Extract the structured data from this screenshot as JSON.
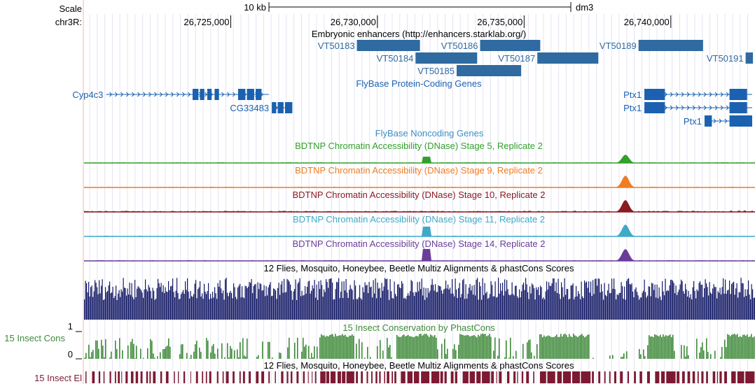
{
  "scale": {
    "label": "Scale",
    "bar_label": "10 kb",
    "assembly": "dm3"
  },
  "chrom": {
    "label": "chr3R:",
    "ticks": [
      {
        "pos": 26725000,
        "label": "26,725,000"
      },
      {
        "pos": 26730000,
        "label": "26,730,000"
      },
      {
        "pos": 26735000,
        "label": "26,735,000"
      },
      {
        "pos": 26740000,
        "label": "26,740,000"
      }
    ]
  },
  "tracks": {
    "enhancers": {
      "title": "Embryonic enhancers (http://enhancers.starklab.org/)",
      "color": "#2f6aa1",
      "items": [
        {
          "name": "VT50183",
          "start": 26729300,
          "end": 26731450,
          "row": 0
        },
        {
          "name": "VT50186",
          "start": 26733500,
          "end": 26735550,
          "row": 0
        },
        {
          "name": "VT50189",
          "start": 26738900,
          "end": 26741100,
          "row": 0
        },
        {
          "name": "VT50184",
          "start": 26731300,
          "end": 26733400,
          "row": 1
        },
        {
          "name": "VT50187",
          "start": 26735450,
          "end": 26737530,
          "row": 1
        },
        {
          "name": "VT50191",
          "start": 26742550,
          "end": 26742800,
          "row": 1
        },
        {
          "name": "VT50185",
          "start": 26732700,
          "end": 26734900,
          "row": 2
        }
      ]
    },
    "coding_genes": {
      "title": "FlyBase Protein-Coding Genes",
      "color": "#1b61b0",
      "genes": [
        {
          "name": "Cyp4c3",
          "row": 0,
          "start": 26720750,
          "end": 26726300,
          "exons": [
            [
              26723700,
              26723900
            ],
            [
              26723950,
              26724100
            ],
            [
              26724200,
              26724350
            ],
            [
              26724450,
              26724600
            ],
            [
              26725250,
              26725500
            ],
            [
              26725550,
              26725800
            ],
            [
              26725850,
              26726050
            ]
          ]
        },
        {
          "name": "CG33483",
          "row": 1,
          "start": 26726400,
          "end": 26727100,
          "exons": [
            [
              26726400,
              26726550
            ],
            [
              26726600,
              26726800
            ],
            [
              26726850,
              26727100
            ]
          ]
        },
        {
          "name": "Ptx1",
          "row": 0,
          "start": 26739100,
          "end": 26742800,
          "exons": [
            [
              26739100,
              26739800
            ],
            [
              26742000,
              26742600
            ]
          ]
        },
        {
          "name": "Ptx1",
          "row": 1,
          "start": 26739100,
          "end": 26742800,
          "exons": [
            [
              26739100,
              26739800
            ],
            [
              26742000,
              26742600
            ]
          ]
        },
        {
          "name": "Ptx1",
          "row": 2,
          "start": 26741150,
          "end": 26742800,
          "exons": [
            [
              26741150,
              26741400
            ],
            [
              26742000,
              26742800
            ]
          ]
        }
      ]
    },
    "noncoding_genes": {
      "title": "FlyBase Noncoding Genes",
      "color": "#3d8fc6"
    },
    "dnase": [
      {
        "title": "BDTNP Chromatin Accessibility (DNase) Stage 5, Replicate 2",
        "color": "#33a02c"
      },
      {
        "title": "BDTNP Chromatin Accessibility (DNase) Stage 9, Replicate 2",
        "color": "#ef7d22"
      },
      {
        "title": "BDTNP Chromatin Accessibility (DNase) Stage 10, Replicate 2",
        "color": "#8b1a22"
      },
      {
        "title": "BDTNP Chromatin Accessibility (DNase) Stage 11, Replicate 2",
        "color": "#3fa9c8"
      },
      {
        "title": "BDTNP Chromatin Accessibility (DNase) Stage 14, Replicate 2",
        "color": "#6a3d9a"
      }
    ],
    "multiz": {
      "title": "12 Flies, Mosquito, Honeybee, Beetle Multiz Alignments & phastCons Scores",
      "color": "#141a66"
    },
    "cons": {
      "title": "15 Insect Conservation by PhastCons",
      "side_label": "15 Insect Cons",
      "ymax_label": "1",
      "ymin_label": "0",
      "color": "#3f8a3a"
    },
    "elements": {
      "title": "12 Flies, Mosquito, Honeybee, Beetle Multiz Alignments & phastCons Scores",
      "side_label": "15 Insect El",
      "color": "#7d1a33"
    }
  }
}
